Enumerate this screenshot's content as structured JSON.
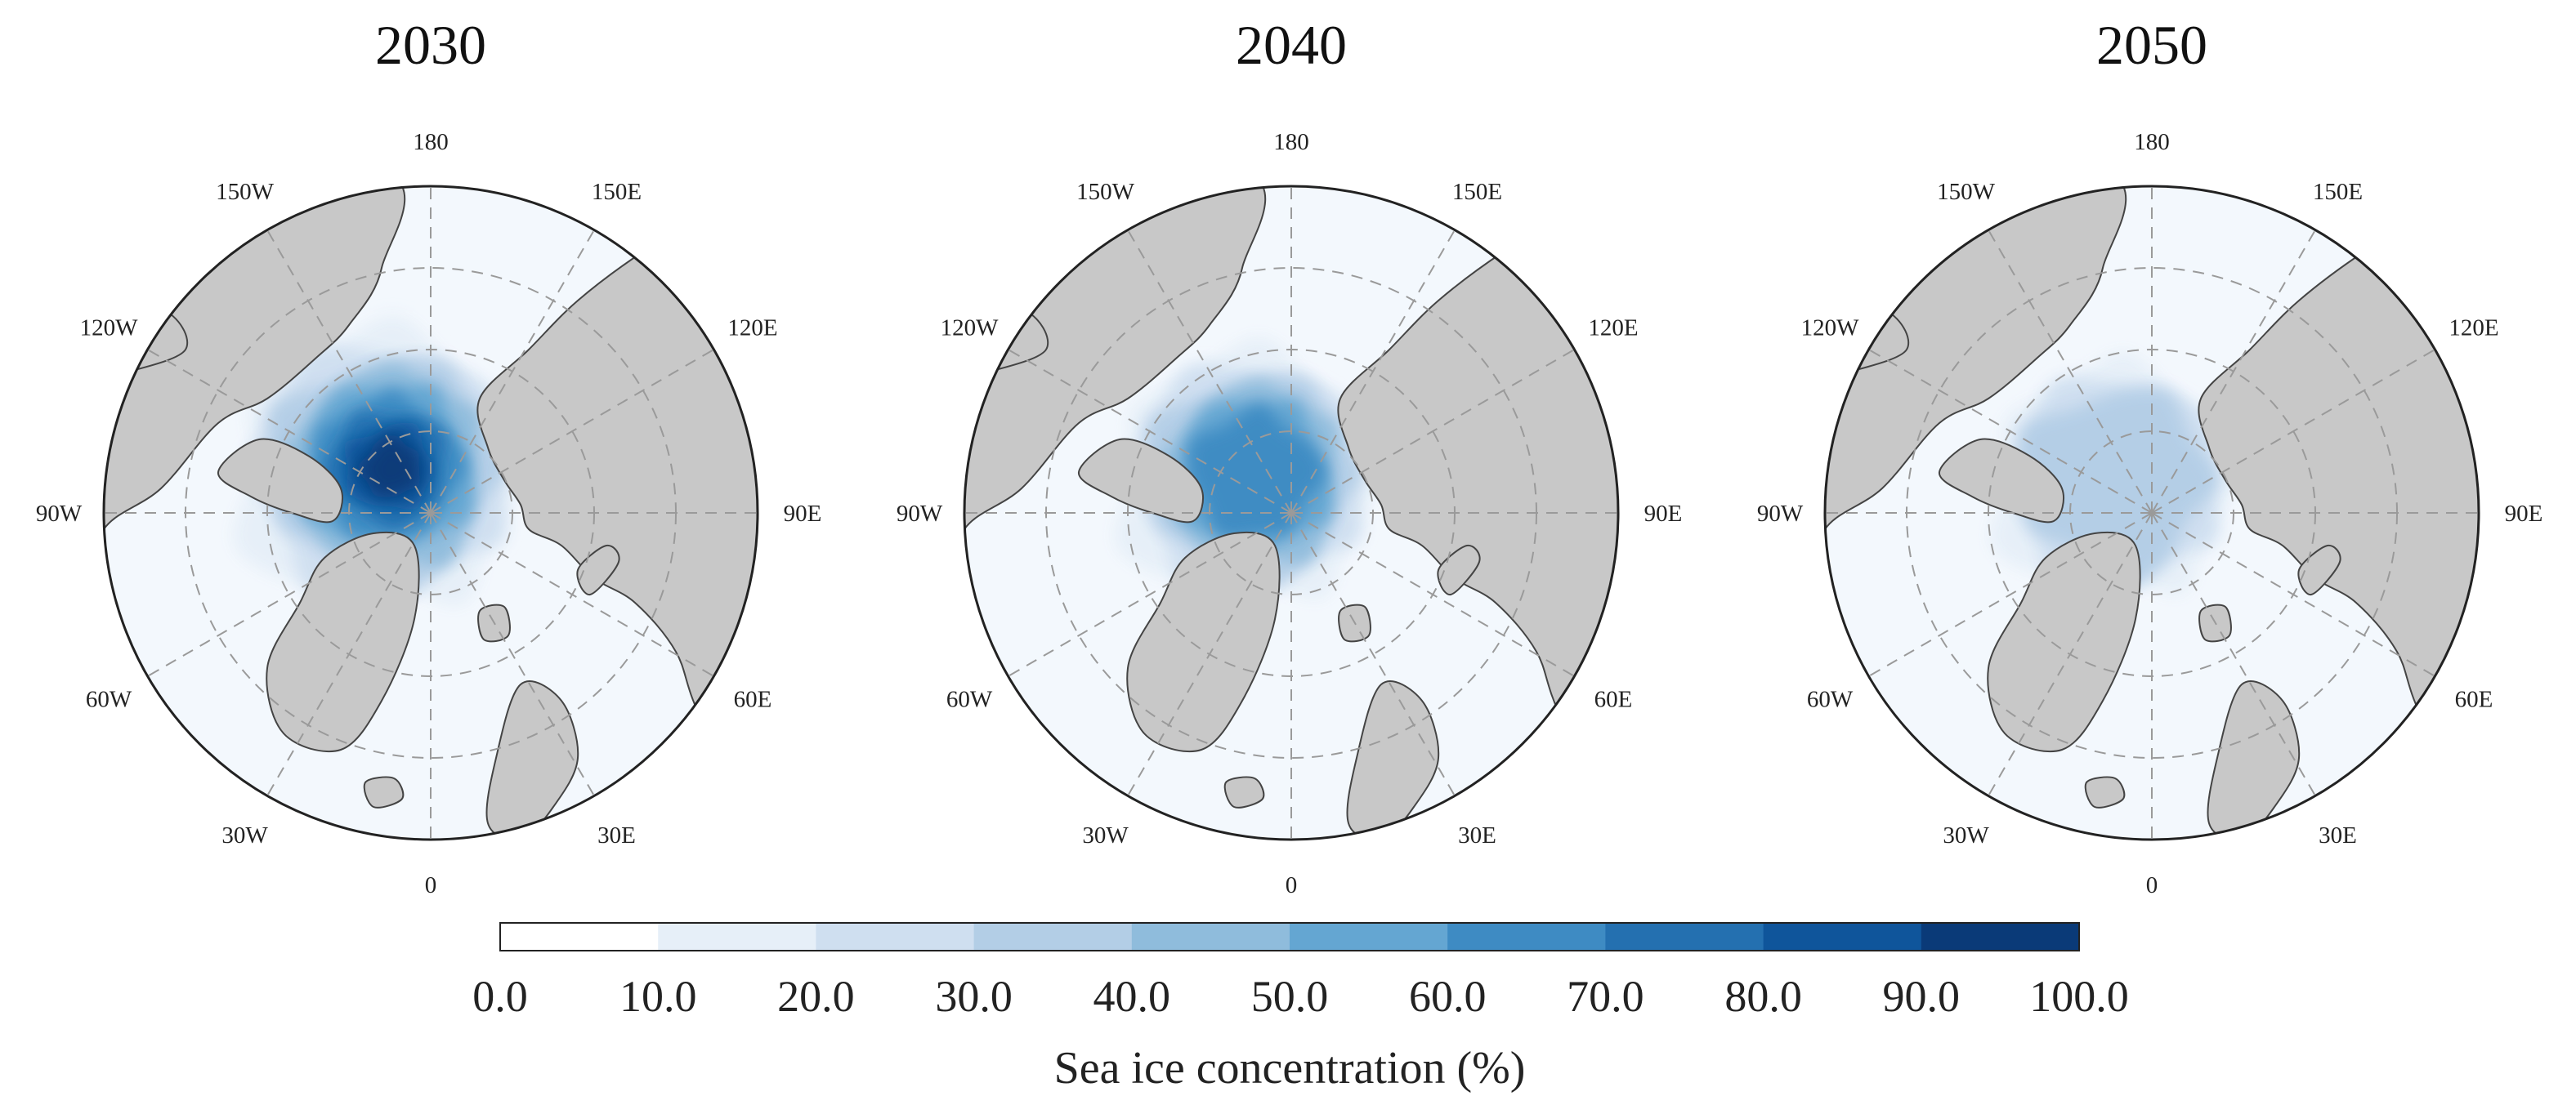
{
  "panels": [
    {
      "id": "2030",
      "title": "2030",
      "ice_level": 1.0
    },
    {
      "id": "2040",
      "title": "2040",
      "ice_level": 0.62
    },
    {
      "id": "2050",
      "title": "2050",
      "ice_level": 0.35
    }
  ],
  "longitude_labels": [
    {
      "deg": 180,
      "text": "180"
    },
    {
      "deg": 150,
      "text": "150E"
    },
    {
      "deg": 120,
      "text": "120E"
    },
    {
      "deg": 90,
      "text": "90E"
    },
    {
      "deg": 60,
      "text": "60E"
    },
    {
      "deg": 30,
      "text": "30E"
    },
    {
      "deg": 0,
      "text": "0"
    },
    {
      "deg": -30,
      "text": "30W"
    },
    {
      "deg": -60,
      "text": "60W"
    },
    {
      "deg": -90,
      "text": "90W"
    },
    {
      "deg": -120,
      "text": "120W"
    },
    {
      "deg": -150,
      "text": "150W"
    }
  ],
  "colorbar": {
    "label": "Sea ice concentration (%)",
    "ticks": [
      "0.0",
      "10.0",
      "20.0",
      "30.0",
      "40.0",
      "50.0",
      "60.0",
      "70.0",
      "80.0",
      "90.0",
      "100.0"
    ],
    "colors": [
      "#ffffff",
      "#e6eff8",
      "#cfdff0",
      "#b3cee6",
      "#8fbcdc",
      "#64a6d2",
      "#3e8bc3",
      "#2470b0",
      "#0f559b",
      "#0a3a78"
    ]
  },
  "style": {
    "land_color": "#c8c8c8",
    "ocean_color": "#f3f8fd",
    "grid_color": "#9a9a9a"
  }
}
